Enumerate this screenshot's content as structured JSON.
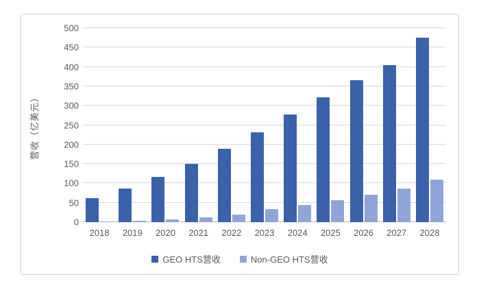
{
  "chart_data": {
    "type": "bar",
    "title": "",
    "ylabel": "营收（亿美元）",
    "xlabel": "",
    "ylim": [
      0,
      500
    ],
    "ytick_step": 50,
    "grid": true,
    "legend_position": "bottom",
    "categories": [
      "2018",
      "2019",
      "2020",
      "2021",
      "2022",
      "2023",
      "2024",
      "2025",
      "2026",
      "2027",
      "2028"
    ],
    "series": [
      {
        "name": "GEO HTS营收",
        "color": "#3a62ab",
        "values": [
          62,
          86,
          117,
          150,
          189,
          232,
          277,
          322,
          366,
          405,
          475
        ]
      },
      {
        "name": "Non-GEO HTS营收",
        "color": "#8fa5da",
        "values": [
          2,
          3,
          7,
          13,
          19,
          33,
          44,
          57,
          71,
          86,
          110
        ]
      }
    ],
    "colors": {
      "grid": "#d9d9d9",
      "axis_line": "#b7b7b7",
      "tick_text": "#595959",
      "card_border": "#d2d2d2"
    }
  }
}
